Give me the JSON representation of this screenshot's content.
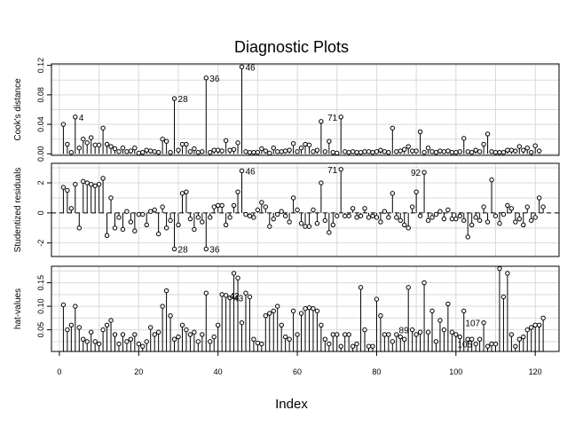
{
  "chart_data": {
    "type": "needle",
    "title": "Diagnostic Plots",
    "xlabel": "Index",
    "xlim": [
      -2,
      126
    ],
    "xticks": [
      0,
      20,
      40,
      60,
      80,
      100,
      120
    ],
    "grid": true,
    "panels": [
      {
        "ylabel": "Cook's distance",
        "ylim": [
          -0.002,
          0.122
        ],
        "yticks": [
          0.0,
          0.04,
          0.08,
          0.12
        ],
        "ytick_labels": [
          "0.00",
          "0.04",
          "0.08",
          "0.12"
        ],
        "minor_gridlines": [
          0.02,
          0.06,
          0.1
        ],
        "baseline": 0,
        "values": [
          0.04,
          0.013,
          0.002,
          0.05,
          0.008,
          0.02,
          0.015,
          0.022,
          0.012,
          0.012,
          0.035,
          0.013,
          0.01,
          0.007,
          0.003,
          0.008,
          0.003,
          0.004,
          0.008,
          0.001,
          0.002,
          0.005,
          0.004,
          0.003,
          0.002,
          0.02,
          0.017,
          0.002,
          0.075,
          0.005,
          0.013,
          0.013,
          0.003,
          0.007,
          0.002,
          0.003,
          0.103,
          0.002,
          0.005,
          0.005,
          0.004,
          0.018,
          0.005,
          0.006,
          0.015,
          0.118,
          0.003,
          0.002,
          0.002,
          0.002,
          0.007,
          0.004,
          0.001,
          0.008,
          0.003,
          0.003,
          0.004,
          0.005,
          0.014,
          0.003,
          0.008,
          0.013,
          0.012,
          0.003,
          0.005,
          0.044,
          0.003,
          0.017,
          0.002,
          0.001,
          0.05,
          0.003,
          0.002,
          0.003,
          0.002,
          0.002,
          0.003,
          0.003,
          0.002,
          0.003,
          0.005,
          0.003,
          0.002,
          0.035,
          0.003,
          0.004,
          0.006,
          0.01,
          0.004,
          0.004,
          0.03,
          0.002,
          0.008,
          0.003,
          0.002,
          0.004,
          0.003,
          0.004,
          0.002,
          0.002,
          0.003,
          0.021,
          0.003,
          0.002,
          0.005,
          0.003,
          0.013,
          0.027,
          0.003,
          0.002,
          0.002,
          0.002,
          0.005,
          0.005,
          0.004,
          0.01,
          0.005,
          0.008,
          0.002,
          0.011,
          0.004
        ],
        "annotations": [
          {
            "index": 4,
            "label": "4",
            "side": "right"
          },
          {
            "index": 29,
            "label": "28",
            "side": "right"
          },
          {
            "index": 37,
            "label": "36",
            "side": "right"
          },
          {
            "index": 46,
            "label": "46",
            "side": "right"
          },
          {
            "index": 71,
            "label": "71",
            "side": "left"
          }
        ]
      },
      {
        "ylabel": "Studentized residuals",
        "ylim": [
          -2.9,
          3.3
        ],
        "yticks": [
          -2,
          0,
          2
        ],
        "ytick_labels": [
          "-2",
          "0",
          "2"
        ],
        "minor_gridlines": [
          -3,
          -1,
          1,
          3
        ],
        "baseline": 0,
        "refline": 0,
        "values": [
          1.7,
          1.5,
          0.3,
          1.9,
          -1.0,
          2.1,
          2.0,
          1.9,
          1.8,
          1.9,
          2.3,
          -1.5,
          1.0,
          -1.0,
          -0.3,
          -1.1,
          0.1,
          -0.6,
          -1.2,
          -0.1,
          -0.1,
          -0.8,
          0.1,
          0.2,
          -1.4,
          0.4,
          -1.0,
          -0.5,
          -2.4,
          -0.8,
          1.3,
          1.4,
          -0.4,
          -1.1,
          -0.3,
          -0.6,
          -2.4,
          -0.3,
          0.4,
          0.5,
          0.5,
          -0.8,
          -0.3,
          0.5,
          1.4,
          2.8,
          -0.1,
          -0.2,
          -0.3,
          0.2,
          0.7,
          0.4,
          -0.9,
          -0.4,
          -0.1,
          0.1,
          -0.2,
          -0.6,
          1.0,
          0.2,
          -0.7,
          -0.9,
          -0.9,
          0.2,
          -0.7,
          2.0,
          -0.5,
          -1.3,
          -0.8,
          -0.2,
          2.9,
          -0.2,
          -0.2,
          0.3,
          -0.3,
          -0.2,
          0.3,
          -0.3,
          -0.2,
          -0.3,
          -0.6,
          0.1,
          -0.3,
          1.3,
          -0.3,
          -0.5,
          -0.8,
          -1.0,
          0.4,
          1.4,
          -0.2,
          2.7,
          -0.5,
          -0.3,
          -0.1,
          0.1,
          -0.4,
          0.2,
          -0.4,
          -0.4,
          -0.2,
          -0.5,
          -1.6,
          -0.8,
          -0.3,
          -0.5,
          0.4,
          -0.6,
          2.2,
          -0.2,
          -0.7,
          -0.1,
          0.5,
          0.3,
          -0.6,
          -0.4,
          -0.8,
          0.4,
          -0.5,
          -0.3,
          1.0,
          0.4
        ],
        "annotations": [
          {
            "index": 29,
            "label": "28",
            "side": "right"
          },
          {
            "index": 37,
            "label": "36",
            "side": "right"
          },
          {
            "index": 46,
            "label": "46",
            "side": "right"
          },
          {
            "index": 71,
            "label": "71",
            "side": "left"
          },
          {
            "index": 92,
            "label": "92",
            "side": "left"
          }
        ]
      },
      {
        "ylabel": "hat-values",
        "ylim": [
          0.004,
          0.185
        ],
        "yticks": [
          0.05,
          0.1,
          0.15
        ],
        "ytick_labels": [
          "0.05",
          "0.10",
          "0.15"
        ],
        "minor_gridlines": [
          0.025,
          0.075,
          0.125,
          0.175
        ],
        "baseline": 0.004,
        "values": [
          0.103,
          0.05,
          0.06,
          0.1,
          0.055,
          0.03,
          0.025,
          0.045,
          0.025,
          0.02,
          0.05,
          0.06,
          0.07,
          0.04,
          0.02,
          0.04,
          0.025,
          0.03,
          0.04,
          0.02,
          0.015,
          0.025,
          0.055,
          0.04,
          0.045,
          0.1,
          0.133,
          0.08,
          0.03,
          0.035,
          0.06,
          0.05,
          0.04,
          0.045,
          0.025,
          0.04,
          0.128,
          0.025,
          0.035,
          0.06,
          0.125,
          0.123,
          0.118,
          0.17,
          0.16,
          0.065,
          0.128,
          0.12,
          0.03,
          0.022,
          0.02,
          0.08,
          0.085,
          0.09,
          0.1,
          0.06,
          0.035,
          0.03,
          0.09,
          0.04,
          0.085,
          0.095,
          0.097,
          0.095,
          0.09,
          0.06,
          0.03,
          0.02,
          0.04,
          0.04,
          0.015,
          0.04,
          0.04,
          0.015,
          0.02,
          0.14,
          0.05,
          0.015,
          0.015,
          0.115,
          0.08,
          0.04,
          0.04,
          0.025,
          0.04,
          0.035,
          0.03,
          0.14,
          0.05,
          0.04,
          0.045,
          0.15,
          0.045,
          0.09,
          0.025,
          0.07,
          0.05,
          0.105,
          0.045,
          0.04,
          0.035,
          0.09,
          0.03,
          0.03,
          0.02,
          0.03,
          0.065,
          0.015,
          0.02,
          0.02,
          0.18,
          0.12,
          0.17,
          0.04,
          0.015,
          0.03,
          0.035,
          0.05,
          0.055,
          0.06,
          0.06,
          0.075
        ],
        "annotations": [
          {
            "index": 42,
            "label": "42",
            "side": "right"
          },
          {
            "index": 43,
            "label": "43",
            "side": "right"
          },
          {
            "index": 89,
            "label": "89",
            "side": "left"
          },
          {
            "index": 105,
            "label": "105",
            "side": "left"
          },
          {
            "index": 107,
            "label": "107",
            "side": "left"
          }
        ]
      }
    ]
  }
}
